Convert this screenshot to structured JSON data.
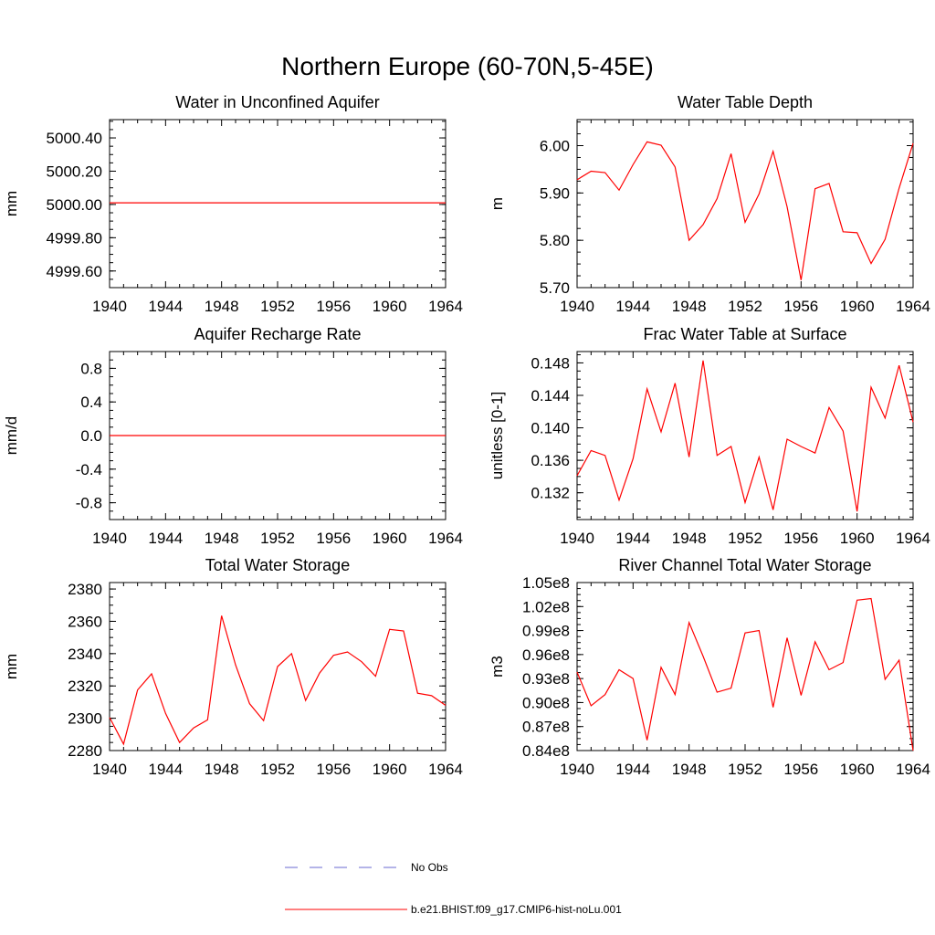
{
  "figure": {
    "title": "Northern Europe (60-70N,5-45E)",
    "legend": [
      {
        "label": "No Obs",
        "color": "#6a6ad0",
        "dash": "dashed"
      },
      {
        "label": "b.e21.BHIST.f09_g17.CMIP6-hist-noLu.001",
        "color": "#ff0000",
        "dash": "solid"
      }
    ]
  },
  "chart_data": [
    {
      "type": "line",
      "title": "Water in Unconfined Aquifer",
      "ylabel": "mm",
      "xlim": [
        1940,
        1964
      ],
      "ylim": [
        4999.5,
        5000.51
      ],
      "x_ticks": [
        "1940",
        "1944",
        "1948",
        "1952",
        "1956",
        "1960",
        "1964"
      ],
      "y_ticks": [
        {
          "v": 5000.4,
          "label": "5000.40"
        },
        {
          "v": 5000.2,
          "label": "5000.20"
        },
        {
          "v": 5000.0,
          "label": "5000.00"
        },
        {
          "v": 4999.8,
          "label": "4999.80"
        },
        {
          "v": 4999.6,
          "label": "4999.60"
        }
      ],
      "x": [
        1940,
        1941,
        1942,
        1943,
        1944,
        1945,
        1946,
        1947,
        1948,
        1949,
        1950,
        1951,
        1952,
        1953,
        1954,
        1955,
        1956,
        1957,
        1958,
        1959,
        1960,
        1961,
        1962,
        1963,
        1964
      ],
      "series": [
        {
          "color": "#ff0000",
          "values": [
            5000.01,
            5000.01,
            5000.01,
            5000.01,
            5000.01,
            5000.01,
            5000.01,
            5000.01,
            5000.01,
            5000.01,
            5000.01,
            5000.01,
            5000.01,
            5000.01,
            5000.01,
            5000.01,
            5000.01,
            5000.01,
            5000.01,
            5000.01,
            5000.01,
            5000.01,
            5000.01,
            5000.01,
            5000.01
          ]
        }
      ]
    },
    {
      "type": "line",
      "title": "Water Table Depth",
      "ylabel": "m",
      "xlim": [
        1940,
        1964
      ],
      "ylim": [
        5.7,
        6.055
      ],
      "x_ticks": [
        "1940",
        "1944",
        "1948",
        "1952",
        "1956",
        "1960",
        "1964"
      ],
      "y_ticks": [
        {
          "v": 6.0,
          "label": "6.00"
        },
        {
          "v": 5.9,
          "label": "5.90"
        },
        {
          "v": 5.8,
          "label": "5.80"
        },
        {
          "v": 5.7,
          "label": "5.70"
        }
      ],
      "x": [
        1940,
        1941,
        1942,
        1943,
        1944,
        1945,
        1946,
        1947,
        1948,
        1949,
        1950,
        1951,
        1952,
        1953,
        1954,
        1955,
        1956,
        1957,
        1958,
        1959,
        1960,
        1961,
        1962,
        1963,
        1964
      ],
      "series": [
        {
          "color": "#ff0000",
          "values": [
            5.928,
            5.946,
            5.943,
            5.906,
            5.96,
            6.008,
            6.001,
            5.955,
            5.8,
            5.833,
            5.888,
            5.983,
            5.838,
            5.898,
            5.988,
            5.871,
            5.716,
            5.909,
            5.92,
            5.818,
            5.816,
            5.751,
            5.802,
            5.91,
            6.005
          ]
        }
      ]
    },
    {
      "type": "line",
      "title": "Aquifer Recharge Rate",
      "ylabel": "mm/d",
      "xlim": [
        1940,
        1964
      ],
      "ylim": [
        -1.0,
        1.0
      ],
      "x_ticks": [
        "1940",
        "1944",
        "1948",
        "1952",
        "1956",
        "1960",
        "1964"
      ],
      "y_ticks": [
        {
          "v": 0.8,
          "label": "0.8"
        },
        {
          "v": 0.4,
          "label": "0.4"
        },
        {
          "v": 0.0,
          "label": "0.0"
        },
        {
          "v": -0.4,
          "label": "-0.4"
        },
        {
          "v": -0.8,
          "label": "-0.8"
        }
      ],
      "x": [
        1940,
        1941,
        1942,
        1943,
        1944,
        1945,
        1946,
        1947,
        1948,
        1949,
        1950,
        1951,
        1952,
        1953,
        1954,
        1955,
        1956,
        1957,
        1958,
        1959,
        1960,
        1961,
        1962,
        1963,
        1964
      ],
      "series": [
        {
          "color": "#ff0000",
          "values": [
            0,
            0,
            0,
            0,
            0,
            0,
            0,
            0,
            0,
            0,
            0,
            0,
            0,
            0,
            0,
            0,
            0,
            0,
            0,
            0,
            0,
            0,
            0,
            0,
            0
          ]
        }
      ]
    },
    {
      "type": "line",
      "title": "Frac Water Table at Surface",
      "ylabel": "unitless [0-1]",
      "xlim": [
        1940,
        1964
      ],
      "ylim": [
        0.1287,
        0.1494
      ],
      "x_ticks": [
        "1940",
        "1944",
        "1948",
        "1952",
        "1956",
        "1960",
        "1964"
      ],
      "y_ticks": [
        {
          "v": 0.148,
          "label": "0.148"
        },
        {
          "v": 0.144,
          "label": "0.144"
        },
        {
          "v": 0.14,
          "label": "0.140"
        },
        {
          "v": 0.136,
          "label": "0.136"
        },
        {
          "v": 0.132,
          "label": "0.132"
        }
      ],
      "x": [
        1940,
        1941,
        1942,
        1943,
        1944,
        1945,
        1946,
        1947,
        1948,
        1949,
        1950,
        1951,
        1952,
        1953,
        1954,
        1955,
        1956,
        1957,
        1958,
        1959,
        1960,
        1961,
        1962,
        1963,
        1964
      ],
      "series": [
        {
          "color": "#ff0000",
          "values": [
            0.1341,
            0.1372,
            0.1366,
            0.1311,
            0.1362,
            0.1448,
            0.1395,
            0.1455,
            0.1364,
            0.1483,
            0.1366,
            0.1377,
            0.1308,
            0.1364,
            0.1299,
            0.1386,
            0.1377,
            0.1369,
            0.1425,
            0.1396,
            0.1297,
            0.145,
            0.1412,
            0.1477,
            0.1407
          ]
        }
      ]
    },
    {
      "type": "line",
      "title": "Total Water Storage",
      "ylabel": "mm",
      "xlim": [
        1940,
        1964
      ],
      "ylim": [
        2280,
        2384
      ],
      "x_ticks": [
        "1940",
        "1944",
        "1948",
        "1952",
        "1956",
        "1960",
        "1964"
      ],
      "y_ticks": [
        {
          "v": 2380,
          "label": "2380"
        },
        {
          "v": 2360,
          "label": "2360"
        },
        {
          "v": 2340,
          "label": "2340"
        },
        {
          "v": 2320,
          "label": "2320"
        },
        {
          "v": 2300,
          "label": "2300"
        },
        {
          "v": 2280,
          "label": "2280"
        }
      ],
      "x": [
        1940,
        1941,
        1942,
        1943,
        1944,
        1945,
        1946,
        1947,
        1948,
        1949,
        1950,
        1951,
        1952,
        1953,
        1954,
        1955,
        1956,
        1957,
        1958,
        1959,
        1960,
        1961,
        1962,
        1963,
        1964
      ],
      "series": [
        {
          "color": "#ff0000",
          "values": [
            2300.5,
            2284,
            2317.5,
            2327.5,
            2303,
            2285,
            2294,
            2299,
            2363.5,
            2333,
            2309,
            2298.5,
            2332,
            2340,
            2311,
            2328,
            2339,
            2341,
            2335,
            2326,
            2355,
            2354,
            2315.5,
            2314,
            2308
          ]
        }
      ]
    },
    {
      "type": "line",
      "title": "River Channel Total Water Storage",
      "ylabel": "m3",
      "xlim": [
        1940,
        1964
      ],
      "ylim": [
        84000000.0,
        105000000.0
      ],
      "x_ticks": [
        "1940",
        "1944",
        "1948",
        "1952",
        "1956",
        "1960",
        "1964"
      ],
      "y_ticks": [
        {
          "v": 105000000.0,
          "label": "1.05e8"
        },
        {
          "v": 102000000.0,
          "label": "1.02e8"
        },
        {
          "v": 99000000.0,
          "label": "0.99e8"
        },
        {
          "v": 96000000.0,
          "label": "0.96e8"
        },
        {
          "v": 93000000.0,
          "label": "0.93e8"
        },
        {
          "v": 90000000.0,
          "label": "0.90e8"
        },
        {
          "v": 87000000.0,
          "label": "0.87e8"
        },
        {
          "v": 84000000.0,
          "label": "0.84e8"
        }
      ],
      "x": [
        1940,
        1941,
        1942,
        1943,
        1944,
        1945,
        1946,
        1947,
        1948,
        1949,
        1950,
        1951,
        1952,
        1953,
        1954,
        1955,
        1956,
        1957,
        1958,
        1959,
        1960,
        1961,
        1962,
        1963,
        1964
      ],
      "series": [
        {
          "color": "#ff0000",
          "values": [
            93800000.0,
            89600000.0,
            91000000.0,
            94100000.0,
            93000000.0,
            85300000.0,
            94400000.0,
            91000000.0,
            100000000.0,
            95800000.0,
            91300000.0,
            91800000.0,
            98700000.0,
            99000000.0,
            89400000.0,
            98100000.0,
            90900000.0,
            97600000.0,
            94100000.0,
            95000000.0,
            102800000.0,
            103000000.0,
            92900000.0,
            95300000.0,
            84000000.0
          ]
        }
      ]
    }
  ]
}
